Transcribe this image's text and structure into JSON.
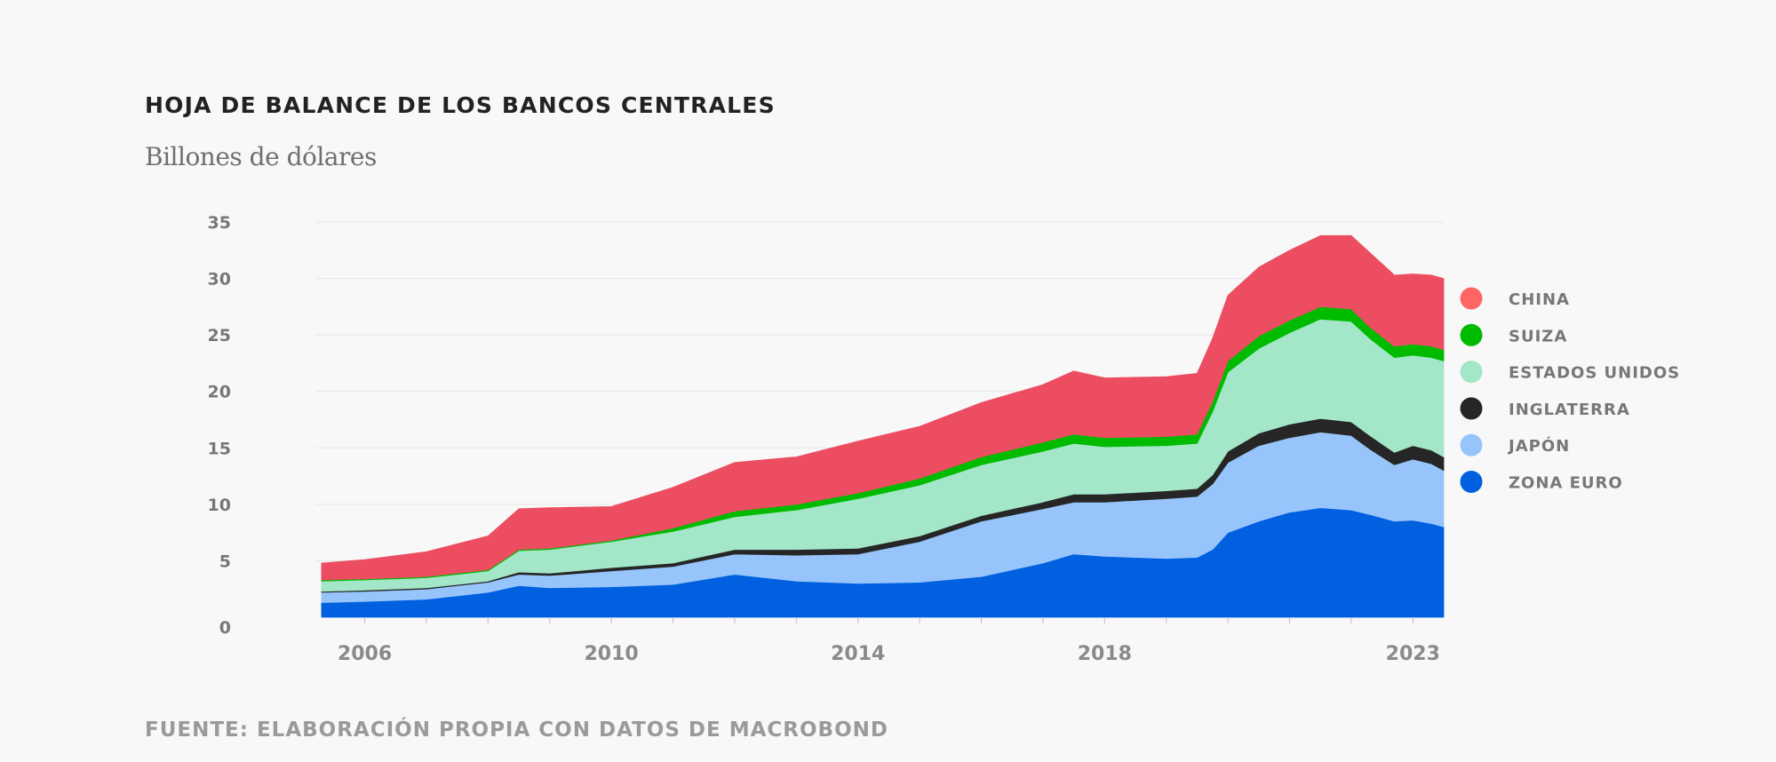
{
  "chart_data": {
    "type": "area",
    "stacked": true,
    "title": "HOJA DE BALANCE DE LOS BANCOS CENTRALES",
    "subtitle": "Billones de dólares",
    "source": "FUENTE: ELABORACIÓN PROPIA CON DATOS DE MACROBOND",
    "xlabel": "",
    "ylabel": "Billones de dólares",
    "ylim": [
      0,
      35
    ],
    "xlim": [
      2005.2,
      2023.5
    ],
    "grid": true,
    "yticks": [
      0,
      5,
      10,
      15,
      20,
      25,
      30,
      35
    ],
    "y_tick_labels": [
      "0",
      "5",
      "10",
      "15",
      "20",
      "25",
      "30",
      "35"
    ],
    "xticks": [
      2006,
      2010,
      2014,
      2018,
      2023
    ],
    "x_tick_labels": [
      "2006",
      "2010",
      "2014",
      "2018",
      "2023"
    ],
    "legend_position": "right",
    "x": [
      2005.3,
      2006.0,
      2007.0,
      2008.0,
      2008.5,
      2009.0,
      2010.0,
      2011.0,
      2012.0,
      2013.0,
      2014.0,
      2015.0,
      2016.0,
      2017.0,
      2017.5,
      2018.0,
      2019.0,
      2019.5,
      2019.75,
      2020.0,
      2020.5,
      2021.0,
      2021.5,
      2022.0,
      2022.3,
      2022.7,
      2023.0,
      2023.3,
      2023.5
    ],
    "series": [
      {
        "name": "ZONA EURO",
        "color": "#0060e0",
        "values": [
          1.3,
          1.4,
          1.6,
          2.2,
          2.8,
          2.6,
          2.7,
          2.9,
          3.8,
          3.2,
          3.0,
          3.1,
          3.6,
          4.8,
          5.6,
          5.4,
          5.2,
          5.3,
          6.0,
          7.5,
          8.5,
          9.3,
          9.7,
          9.5,
          9.1,
          8.5,
          8.6,
          8.3,
          8.0
        ]
      },
      {
        "name": "JAPÓN",
        "color": "#97c5fb",
        "values": [
          0.9,
          0.9,
          0.9,
          0.9,
          1.0,
          1.1,
          1.4,
          1.6,
          1.8,
          2.3,
          2.6,
          3.6,
          4.9,
          4.8,
          4.6,
          4.8,
          5.3,
          5.4,
          5.8,
          6.2,
          6.7,
          6.6,
          6.7,
          6.6,
          5.8,
          5.0,
          5.4,
          5.3,
          5.0
        ]
      },
      {
        "name": "INGLATERRA",
        "color": "#262626",
        "values": [
          0.1,
          0.1,
          0.1,
          0.1,
          0.2,
          0.2,
          0.3,
          0.3,
          0.4,
          0.5,
          0.5,
          0.5,
          0.5,
          0.6,
          0.7,
          0.7,
          0.7,
          0.7,
          0.8,
          1.0,
          1.1,
          1.2,
          1.2,
          1.2,
          1.2,
          1.1,
          1.2,
          1.2,
          1.2
        ]
      },
      {
        "name": "ESTADOS UNIDOS",
        "color": "#a3e6c8",
        "values": [
          0.9,
          0.9,
          0.9,
          0.9,
          1.9,
          2.1,
          2.3,
          2.8,
          2.9,
          3.5,
          4.4,
          4.5,
          4.5,
          4.5,
          4.5,
          4.2,
          4.0,
          4.0,
          5.6,
          7.0,
          7.5,
          8.1,
          8.8,
          8.9,
          8.6,
          8.4,
          8.0,
          8.2,
          8.5
        ]
      },
      {
        "name": "SUIZA",
        "color": "#00bb00",
        "values": [
          0.1,
          0.1,
          0.1,
          0.1,
          0.1,
          0.1,
          0.1,
          0.3,
          0.5,
          0.5,
          0.5,
          0.6,
          0.7,
          0.8,
          0.8,
          0.8,
          0.8,
          0.8,
          0.9,
          1.0,
          1.1,
          1.1,
          1.1,
          1.1,
          1.0,
          1.0,
          1.0,
          1.0,
          1.0
        ]
      },
      {
        "name": "CHINA",
        "color": "#ec4d61",
        "values": [
          1.5,
          1.7,
          2.2,
          3.0,
          3.6,
          3.6,
          3.0,
          3.6,
          4.3,
          4.2,
          4.6,
          4.6,
          4.8,
          5.1,
          5.6,
          5.3,
          5.3,
          5.4,
          5.6,
          5.8,
          6.1,
          6.2,
          6.3,
          6.5,
          6.6,
          6.3,
          6.2,
          6.3,
          6.3
        ]
      }
    ],
    "legend": [
      {
        "name": "CHINA",
        "color": "#fd6663"
      },
      {
        "name": "SUIZA",
        "color": "#00bb00"
      },
      {
        "name": "ESTADOS UNIDOS",
        "color": "#a3e6c8"
      },
      {
        "name": "INGLATERRA",
        "color": "#262626"
      },
      {
        "name": "JAPÓN",
        "color": "#97c5fb"
      },
      {
        "name": "ZONA EURO",
        "color": "#0060e0"
      }
    ]
  }
}
